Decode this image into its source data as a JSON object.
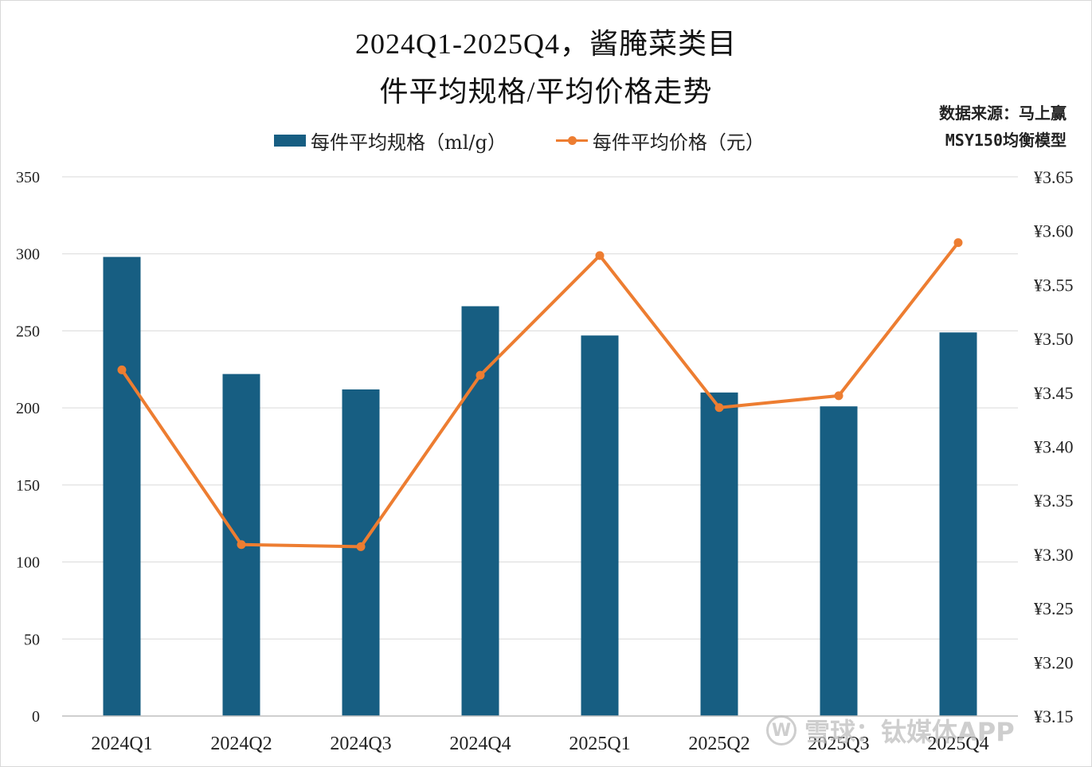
{
  "header": {
    "title_line1": "2024Q1-2025Q4，酱腌菜类目",
    "title_line2": "件平均规格/平均价格走势"
  },
  "source": {
    "line1": "数据来源：马上赢",
    "line2": "MSY150均衡模型"
  },
  "legend": {
    "bar_label": "每件平均规格（ml/g）",
    "line_label": "每件平均价格（元）"
  },
  "colors": {
    "bar": "#175e82",
    "line": "#ed7d31",
    "grid": "#d9d9d9"
  },
  "watermark": {
    "logo": "W",
    "text": "雪球：钛媒体APP"
  },
  "chart_data": {
    "type": "bar+line",
    "categories": [
      "2024Q1",
      "2024Q2",
      "2024Q3",
      "2024Q4",
      "2025Q1",
      "2025Q2",
      "2025Q3",
      "2025Q4"
    ],
    "series": [
      {
        "name": "每件平均规格（ml/g）",
        "type": "bar",
        "axis": "left",
        "values": [
          298,
          222,
          212,
          266,
          247,
          210,
          201,
          249
        ]
      },
      {
        "name": "每件平均价格（元）",
        "type": "line",
        "axis": "right",
        "values": [
          3.471,
          3.309,
          3.307,
          3.466,
          3.577,
          3.436,
          3.447,
          3.589
        ]
      }
    ],
    "left_axis": {
      "range": [
        0,
        350
      ],
      "ticks": [
        0,
        50,
        100,
        150,
        200,
        250,
        300,
        350
      ],
      "tick_labels": [
        "0",
        "50",
        "100",
        "150",
        "200",
        "250",
        "300",
        "350"
      ]
    },
    "right_axis": {
      "range": [
        3.15,
        3.65
      ],
      "ticks": [
        3.15,
        3.2,
        3.25,
        3.3,
        3.35,
        3.4,
        3.45,
        3.5,
        3.55,
        3.6,
        3.65
      ],
      "tick_labels": [
        "¥3.15",
        "¥3.20",
        "¥3.25",
        "¥3.30",
        "¥3.35",
        "¥3.40",
        "¥3.45",
        "¥3.50",
        "¥3.55",
        "¥3.60",
        "¥3.65"
      ]
    },
    "grid": true
  }
}
